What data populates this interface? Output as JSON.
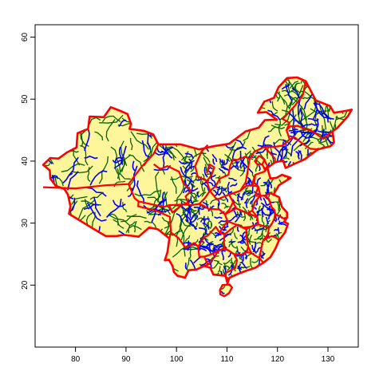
{
  "chart_data": {
    "type": "map",
    "title": "",
    "xlabel": "",
    "ylabel": "",
    "xlim": [
      72,
      136
    ],
    "ylim": [
      10,
      62
    ],
    "x_ticks": [
      80,
      90,
      100,
      110,
      120,
      130
    ],
    "y_ticks": [
      20,
      30,
      40,
      50,
      60
    ],
    "x_tick_labels": [
      "80",
      "90",
      "100",
      "110",
      "120",
      "130"
    ],
    "y_tick_labels": [
      "20",
      "30",
      "40",
      "50",
      "60"
    ],
    "colors": {
      "land_fill": "#fff59a",
      "province_border": "#ff0000",
      "prefecture_border": "#0000ff",
      "county_border": "#006400",
      "frame": "#000000"
    },
    "outline_lonlat": [
      [
        73.6,
        39.4
      ],
      [
        75.0,
        40.5
      ],
      [
        76.6,
        40.4
      ],
      [
        78.3,
        41.4
      ],
      [
        80.2,
        42.2
      ],
      [
        80.4,
        44.5
      ],
      [
        82.5,
        45.2
      ],
      [
        82.8,
        47.2
      ],
      [
        85.6,
        47.1
      ],
      [
        87.0,
        48.7
      ],
      [
        88.9,
        48.1
      ],
      [
        90.3,
        47.6
      ],
      [
        91.0,
        46.0
      ],
      [
        90.7,
        45.2
      ],
      [
        93.5,
        44.9
      ],
      [
        95.4,
        44.3
      ],
      [
        96.4,
        42.7
      ],
      [
        100.8,
        42.7
      ],
      [
        104.5,
        41.9
      ],
      [
        107.3,
        42.4
      ],
      [
        110.4,
        42.8
      ],
      [
        111.9,
        43.7
      ],
      [
        113.7,
        44.8
      ],
      [
        116.3,
        45.4
      ],
      [
        117.5,
        46.6
      ],
      [
        119.9,
        46.7
      ],
      [
        117.8,
        47.9
      ],
      [
        116.1,
        47.8
      ],
      [
        117.4,
        49.6
      ],
      [
        119.3,
        50.2
      ],
      [
        120.2,
        51.9
      ],
      [
        121.9,
        53.4
      ],
      [
        123.9,
        53.5
      ],
      [
        125.6,
        52.9
      ],
      [
        127.6,
        49.8
      ],
      [
        130.4,
        48.9
      ],
      [
        131.2,
        47.8
      ],
      [
        133.5,
        48.1
      ],
      [
        134.7,
        48.3
      ],
      [
        134.0,
        47.3
      ],
      [
        131.8,
        45.3
      ],
      [
        130.9,
        44.8
      ],
      [
        131.2,
        43.0
      ],
      [
        130.5,
        42.4
      ],
      [
        128.0,
        41.9
      ],
      [
        125.4,
        40.3
      ],
      [
        124.3,
        39.9
      ],
      [
        121.6,
        38.9
      ],
      [
        121.1,
        40.1
      ],
      [
        119.5,
        39.8
      ],
      [
        118.0,
        38.9
      ],
      [
        118.6,
        37.2
      ],
      [
        119.8,
        37.3
      ],
      [
        120.9,
        37.8
      ],
      [
        122.6,
        37.3
      ],
      [
        120.3,
        36.1
      ],
      [
        119.2,
        34.6
      ],
      [
        120.3,
        34.2
      ],
      [
        120.9,
        32.6
      ],
      [
        121.9,
        31.7
      ],
      [
        121.9,
        30.9
      ],
      [
        121.3,
        30.2
      ],
      [
        122.1,
        29.9
      ],
      [
        121.5,
        28.5
      ],
      [
        120.3,
        27.2
      ],
      [
        119.6,
        25.9
      ],
      [
        118.6,
        24.5
      ],
      [
        117.2,
        23.6
      ],
      [
        115.6,
        22.8
      ],
      [
        113.8,
        22.3
      ],
      [
        112.2,
        21.8
      ],
      [
        110.5,
        21.2
      ],
      [
        110.1,
        20.3
      ],
      [
        109.7,
        21.5
      ],
      [
        108.5,
        21.6
      ],
      [
        107.3,
        21.7
      ],
      [
        106.7,
        22.8
      ],
      [
        105.5,
        23.1
      ],
      [
        103.9,
        22.5
      ],
      [
        102.4,
        22.4
      ],
      [
        101.7,
        21.2
      ],
      [
        100.2,
        21.5
      ],
      [
        99.5,
        22.1
      ],
      [
        99.2,
        23.1
      ],
      [
        98.5,
        24.1
      ],
      [
        97.7,
        24.0
      ],
      [
        98.2,
        25.3
      ],
      [
        98.6,
        27.5
      ],
      [
        97.4,
        28.3
      ],
      [
        96.3,
        29.0
      ],
      [
        94.6,
        29.3
      ],
      [
        92.5,
        27.8
      ],
      [
        91.6,
        27.9
      ],
      [
        89.6,
        28.1
      ],
      [
        88.1,
        27.9
      ],
      [
        86.0,
        27.9
      ],
      [
        84.1,
        28.8
      ],
      [
        81.3,
        30.2
      ],
      [
        78.7,
        31.5
      ],
      [
        79.0,
        32.7
      ],
      [
        78.5,
        34.6
      ],
      [
        77.8,
        35.5
      ],
      [
        76.1,
        36.0
      ],
      [
        75.0,
        37.2
      ],
      [
        74.9,
        38.5
      ],
      [
        73.6,
        39.4
      ]
    ],
    "hainan_lonlat": [
      [
        108.6,
        19.2
      ],
      [
        109.1,
        20.0
      ],
      [
        110.5,
        20.1
      ],
      [
        111.0,
        19.6
      ],
      [
        110.4,
        18.7
      ],
      [
        109.5,
        18.2
      ],
      [
        108.7,
        18.5
      ],
      [
        108.6,
        19.2
      ]
    ],
    "province_borders_lonlat": [
      [
        [
          73.6,
          35.8
        ],
        [
          80.0,
          35.6
        ],
        [
          86.0,
          36.1
        ],
        [
          90.5,
          36.3
        ],
        [
          93.0,
          39.0
        ],
        [
          95.5,
          41.2
        ],
        [
          96.4,
          42.7
        ]
      ],
      [
        [
          90.5,
          36.3
        ],
        [
          91.7,
          34.0
        ],
        [
          92.5,
          33.5
        ],
        [
          97.5,
          32.6
        ],
        [
          98.5,
          32.9
        ],
        [
          99.2,
          31.7
        ],
        [
          101.2,
          33.0
        ],
        [
          102.3,
          33.3
        ],
        [
          101.8,
          34.3
        ],
        [
          102.9,
          35.2
        ],
        [
          101.4,
          36.4
        ],
        [
          100.5,
          38.3
        ],
        [
          98.2,
          39.2
        ],
        [
          96.8,
          38.7
        ],
        [
          95.5,
          39.5
        ]
      ],
      [
        [
          92.5,
          33.5
        ],
        [
          92.4,
          32.7
        ],
        [
          96.0,
          32.0
        ],
        [
          98.7,
          31.0
        ],
        [
          98.9,
          28.5
        ],
        [
          98.6,
          27.5
        ]
      ],
      [
        [
          98.9,
          28.5
        ],
        [
          100.4,
          27.6
        ],
        [
          101.8,
          26.0
        ],
        [
          103.5,
          26.8
        ],
        [
          104.3,
          26.2
        ],
        [
          104.5,
          24.6
        ],
        [
          105.5,
          24.6
        ],
        [
          106.2,
          23.3
        ],
        [
          105.5,
          23.1
        ]
      ],
      [
        [
          104.3,
          26.2
        ],
        [
          105.4,
          27.7
        ],
        [
          106.2,
          28.0
        ],
        [
          107.8,
          29.4
        ],
        [
          108.5,
          28.5
        ],
        [
          109.5,
          28.2
        ],
        [
          109.3,
          25.8
        ],
        [
          108.2,
          25.5
        ],
        [
          106.7,
          24.9
        ],
        [
          105.5,
          24.6
        ]
      ],
      [
        [
          98.5,
          32.9
        ],
        [
          101.2,
          33.0
        ],
        [
          103.0,
          32.9
        ],
        [
          104.5,
          33.1
        ],
        [
          105.4,
          32.8
        ],
        [
          106.3,
          32.3
        ],
        [
          108.5,
          32.2
        ],
        [
          109.6,
          31.4
        ],
        [
          110.1,
          30.3
        ],
        [
          108.5,
          28.5
        ]
      ],
      [
        [
          104.5,
          33.1
        ],
        [
          105.6,
          34.0
        ],
        [
          106.6,
          35.2
        ],
        [
          106.0,
          36.8
        ],
        [
          104.2,
          37.5
        ],
        [
          103.7,
          39.2
        ],
        [
          105.0,
          41.6
        ],
        [
          106.2,
          42.6
        ]
      ],
      [
        [
          106.0,
          36.8
        ],
        [
          106.9,
          37.7
        ],
        [
          107.5,
          39.0
        ],
        [
          106.5,
          39.5
        ],
        [
          106.0,
          38.0
        ]
      ],
      [
        [
          106.6,
          35.2
        ],
        [
          107.7,
          35.9
        ],
        [
          108.6,
          37.2
        ],
        [
          110.3,
          37.8
        ],
        [
          110.6,
          39.2
        ],
        [
          111.2,
          40.3
        ],
        [
          112.0,
          40.2
        ],
        [
          113.6,
          40.7
        ],
        [
          114.5,
          40.4
        ],
        [
          114.0,
          38.0
        ],
        [
          113.7,
          36.6
        ],
        [
          112.6,
          35.2
        ],
        [
          110.4,
          34.6
        ]
      ],
      [
        [
          106.6,
          35.2
        ],
        [
          108.0,
          33.8
        ],
        [
          110.4,
          34.6
        ],
        [
          111.2,
          33.4
        ],
        [
          110.5,
          32.2
        ],
        [
          109.6,
          31.4
        ]
      ],
      [
        [
          110.4,
          34.6
        ],
        [
          112.6,
          35.2
        ],
        [
          113.8,
          36.0
        ],
        [
          114.9,
          36.1
        ],
        [
          116.2,
          35.9
        ],
        [
          115.6,
          34.4
        ],
        [
          116.6,
          34.4
        ],
        [
          115.5,
          33.4
        ],
        [
          115.0,
          32.0
        ],
        [
          114.0,
          31.6
        ],
        [
          111.8,
          32.4
        ],
        [
          111.2,
          33.4
        ]
      ],
      [
        [
          109.6,
          31.4
        ],
        [
          111.8,
          32.4
        ],
        [
          114.0,
          31.6
        ],
        [
          116.0,
          31.0
        ],
        [
          116.2,
          29.8
        ],
        [
          114.6,
          29.4
        ],
        [
          113.2,
          29.3
        ],
        [
          112.0,
          29.7
        ],
        [
          110.1,
          30.3
        ]
      ],
      [
        [
          108.5,
          28.5
        ],
        [
          109.5,
          28.2
        ],
        [
          110.9,
          29.1
        ],
        [
          112.0,
          29.7
        ],
        [
          113.8,
          29.0
        ],
        [
          113.9,
          27.6
        ],
        [
          114.2,
          26.2
        ],
        [
          113.9,
          25.3
        ],
        [
          112.9,
          24.9
        ],
        [
          111.4,
          25.0
        ],
        [
          110.3,
          25.6
        ],
        [
          109.3,
          25.8
        ]
      ],
      [
        [
          106.2,
          23.3
        ],
        [
          107.6,
          24.6
        ],
        [
          108.2,
          25.5
        ],
        [
          109.5,
          26.0
        ],
        [
          111.4,
          25.0
        ],
        [
          112.0,
          24.0
        ],
        [
          111.6,
          22.7
        ],
        [
          109.8,
          22.0
        ],
        [
          109.7,
          21.5
        ]
      ],
      [
        [
          111.4,
          25.0
        ],
        [
          112.9,
          24.9
        ],
        [
          113.9,
          25.3
        ],
        [
          114.8,
          25.2
        ],
        [
          115.9,
          24.6
        ],
        [
          116.4,
          24.4
        ],
        [
          117.2,
          23.6
        ]
      ],
      [
        [
          114.8,
          25.2
        ],
        [
          114.2,
          26.2
        ],
        [
          113.9,
          27.6
        ],
        [
          113.8,
          29.0
        ],
        [
          114.6,
          29.4
        ],
        [
          116.2,
          29.8
        ],
        [
          117.3,
          29.5
        ],
        [
          118.3,
          29.2
        ],
        [
          118.1,
          28.2
        ],
        [
          117.1,
          27.1
        ],
        [
          116.4,
          24.4
        ]
      ],
      [
        [
          117.1,
          27.1
        ],
        [
          118.2,
          27.7
        ],
        [
          118.9,
          27.9
        ],
        [
          119.8,
          27.6
        ],
        [
          120.3,
          27.2
        ]
      ],
      [
        [
          118.3,
          29.2
        ],
        [
          118.9,
          29.9
        ],
        [
          119.4,
          30.8
        ],
        [
          119.5,
          31.4
        ],
        [
          120.5,
          31.1
        ],
        [
          121.3,
          30.7
        ],
        [
          121.9,
          30.9
        ]
      ],
      [
        [
          116.0,
          31.0
        ],
        [
          115.0,
          32.0
        ],
        [
          115.5,
          33.4
        ],
        [
          116.6,
          34.4
        ],
        [
          117.4,
          34.4
        ],
        [
          118.3,
          33.9
        ],
        [
          118.8,
          32.6
        ],
        [
          119.4,
          32.1
        ],
        [
          119.5,
          31.4
        ]
      ],
      [
        [
          116.6,
          34.4
        ],
        [
          116.2,
          35.9
        ],
        [
          115.4,
          36.5
        ],
        [
          115.6,
          37.8
        ],
        [
          117.4,
          38.3
        ],
        [
          118.0,
          38.9
        ]
      ],
      [
        [
          117.4,
          34.4
        ],
        [
          118.6,
          34.8
        ],
        [
          119.2,
          34.6
        ]
      ],
      [
        [
          114.5,
          40.4
        ],
        [
          115.4,
          41.5
        ],
        [
          117.4,
          42.3
        ],
        [
          118.3,
          41.5
        ],
        [
          119.5,
          40.4
        ],
        [
          119.5,
          39.8
        ]
      ],
      [
        [
          115.6,
          37.8
        ],
        [
          114.9,
          36.1
        ],
        [
          113.8,
          36.0
        ]
      ],
      [
        [
          116.4,
          40.9
        ],
        [
          117.4,
          40.2
        ],
        [
          117.0,
          39.5
        ],
        [
          116.0,
          39.5
        ],
        [
          115.5,
          40.0
        ],
        [
          116.4,
          40.9
        ]
      ],
      [
        [
          117.4,
          40.2
        ],
        [
          118.0,
          39.2
        ],
        [
          117.5,
          38.6
        ],
        [
          117.0,
          39.5
        ]
      ],
      [
        [
          117.4,
          42.3
        ],
        [
          119.3,
          42.3
        ],
        [
          121.0,
          42.5
        ],
        [
          122.4,
          43.5
        ],
        [
          123.3,
          43.9
        ],
        [
          125.0,
          42.8
        ],
        [
          126.5,
          42.0
        ],
        [
          128.0,
          41.9
        ]
      ],
      [
        [
          122.4,
          43.5
        ],
        [
          121.8,
          45.0
        ],
        [
          122.5,
          45.6
        ],
        [
          124.0,
          45.7
        ],
        [
          125.3,
          45.2
        ],
        [
          126.3,
          45.1
        ],
        [
          127.5,
          44.5
        ],
        [
          129.0,
          43.6
        ],
        [
          130.9,
          44.8
        ]
      ],
      [
        [
          121.8,
          45.0
        ],
        [
          122.4,
          46.2
        ],
        [
          121.0,
          46.8
        ],
        [
          121.6,
          47.3
        ],
        [
          123.4,
          48.9
        ],
        [
          125.0,
          50.6
        ],
        [
          125.6,
          52.9
        ]
      ]
    ]
  }
}
